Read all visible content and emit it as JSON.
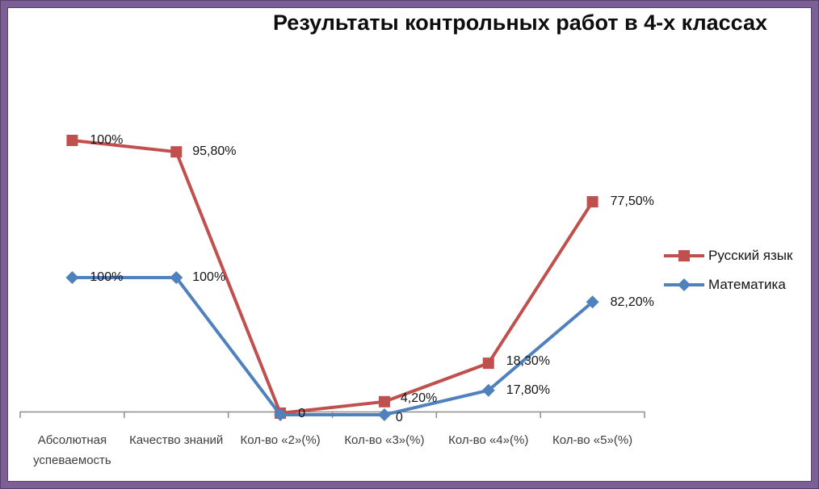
{
  "chart_data": {
    "type": "line",
    "title": "Результаты контрольных работ в 4-х классах",
    "categories": [
      "Абсолютная успеваемость",
      "Качество знаний",
      "Кол-во «2»(%)",
      "Кол-во «3»(%)",
      "Кол-во «4»(%)",
      "Кол-во «5»(%)"
    ],
    "series": [
      {
        "name": "Русский язык",
        "color": "#C0504D",
        "marker": "square",
        "values": [
          100,
          95.8,
          0,
          4.2,
          18.3,
          77.5
        ],
        "labels": [
          "100%",
          "95,80%",
          "0",
          "4,20%",
          "18,30%",
          "77,50%"
        ]
      },
      {
        "name": "Математика",
        "color": "#4F81BD",
        "marker": "diamond",
        "values": [
          100,
          100,
          0,
          0,
          17.8,
          82.2
        ],
        "labels": [
          "100%",
          "100%",
          "",
          "0",
          "17,80%",
          "82,20%"
        ]
      }
    ],
    "legend_position": "right",
    "grid": false,
    "y_axis_visible": false,
    "ylim": [
      0,
      100
    ],
    "x_axis_line_color": "#8e8e8e",
    "frame_color": "#7c6095"
  }
}
